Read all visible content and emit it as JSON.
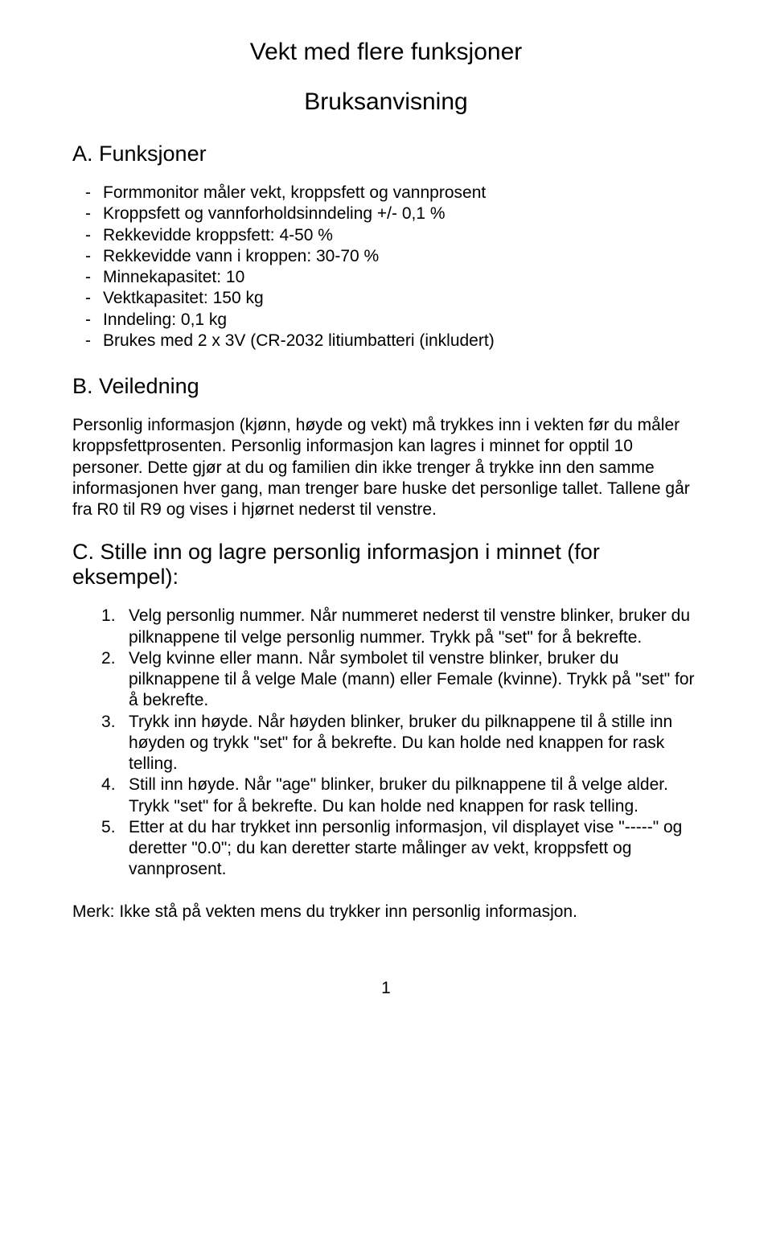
{
  "title": "Vekt med flere funksjoner",
  "subtitle": "Bruksanvisning",
  "sectionA": {
    "heading": "A. Funksjoner",
    "items": [
      "Formmonitor måler vekt, kroppsfett og vannprosent",
      "Kroppsfett og vannforholdsinndeling +/- 0,1 %",
      "Rekkevidde kroppsfett: 4-50 %",
      "Rekkevidde vann i kroppen: 30-70 %",
      "Minnekapasitet: 10",
      "Vektkapasitet: 150 kg",
      "Inndeling: 0,1 kg",
      "Brukes med 2 x 3V (CR-2032 litiumbatteri (inkludert)"
    ]
  },
  "sectionB": {
    "heading": "B. Veiledning",
    "paragraph": "Personlig informasjon (kjønn, høyde og vekt) må trykkes inn i vekten før du måler kroppsfettprosenten. Personlig informasjon kan lagres i minnet for opptil 10 personer. Dette gjør at du og familien din ikke trenger å trykke inn den samme informasjonen hver gang, man trenger bare huske det personlige tallet. Tallene går fra R0 til R9 og vises i hjørnet nederst til venstre."
  },
  "sectionC": {
    "heading": "C. Stille inn og lagre personlig informasjon i minnet (for eksempel):",
    "items": [
      "Velg personlig nummer. Når nummeret nederst til venstre blinker, bruker du pilknappene til velge personlig nummer. Trykk på \"set\" for å bekrefte.",
      "Velg kvinne eller mann. Når symbolet til venstre blinker, bruker du pilknappene til å velge Male (mann) eller Female (kvinne). Trykk på \"set\" for å bekrefte.",
      "Trykk inn høyde. Når høyden blinker, bruker du pilknappene til å stille inn høyden og trykk \"set\" for å bekrefte. Du kan holde ned knappen for rask telling.",
      "Still inn høyde. Når \"age\" blinker, bruker du pilknappene til å velge alder. Trykk \"set\" for å bekrefte. Du kan holde ned knappen for rask telling.",
      "Etter at du har trykket inn personlig informasjon, vil displayet vise \"-----\" og deretter \"0.0\"; du kan deretter starte målinger av vekt, kroppsfett og vannprosent."
    ]
  },
  "note": "Merk: Ikke stå på vekten mens du trykker inn personlig informasjon.",
  "pageNumber": "1"
}
